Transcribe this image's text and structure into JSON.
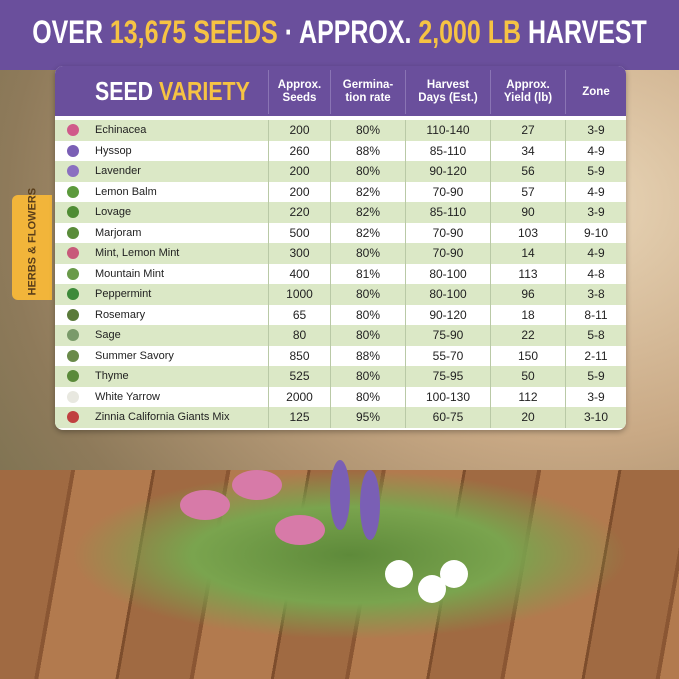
{
  "header": {
    "segments": [
      {
        "text": "OVER ",
        "highlight": false
      },
      {
        "text": "13,675 SEEDS",
        "highlight": true
      },
      {
        "text": " · APPROX. ",
        "highlight": false
      },
      {
        "text": "2,000 LB",
        "highlight": true
      },
      {
        "text": " HARVEST",
        "highlight": false
      }
    ]
  },
  "side_label": "HERBS & FLOWERS",
  "table": {
    "title": [
      {
        "text": "SEED ",
        "highlight": false
      },
      {
        "text": "VARIETY",
        "highlight": true
      }
    ],
    "columns": [
      [
        "Approx.",
        "Seeds"
      ],
      [
        "Germina-",
        "tion rate"
      ],
      [
        "Harvest",
        "Days (Est.)"
      ],
      [
        "Approx.",
        "Yield (lb)"
      ],
      [
        "Zone"
      ]
    ],
    "rows": [
      [
        "Echinacea",
        "200",
        "80%",
        "110-140",
        "27",
        "3-9"
      ],
      [
        "Hyssop",
        "260",
        "88%",
        "85-110",
        "34",
        "4-9"
      ],
      [
        "Lavender",
        "200",
        "80%",
        "90-120",
        "56",
        "5-9"
      ],
      [
        "Lemon Balm",
        "200",
        "82%",
        "70-90",
        "57",
        "4-9"
      ],
      [
        "Lovage",
        "220",
        "82%",
        "85-110",
        "90",
        "3-9"
      ],
      [
        "Marjoram",
        "500",
        "82%",
        "70-90",
        "103",
        "9-10"
      ],
      [
        "Mint, Lemon Mint",
        "300",
        "80%",
        "70-90",
        "14",
        "4-9"
      ],
      [
        "Mountain Mint",
        "400",
        "81%",
        "80-100",
        "113",
        "4-8"
      ],
      [
        "Peppermint",
        "1000",
        "80%",
        "80-100",
        "96",
        "3-8"
      ],
      [
        "Rosemary",
        "65",
        "80%",
        "90-120",
        "18",
        "8-11"
      ],
      [
        "Sage",
        "80",
        "80%",
        "75-90",
        "22",
        "5-8"
      ],
      [
        "Summer Savory",
        "850",
        "88%",
        "55-70",
        "150",
        "2-11"
      ],
      [
        "Thyme",
        "525",
        "80%",
        "75-95",
        "50",
        "5-9"
      ],
      [
        "White Yarrow",
        "2000",
        "80%",
        "100-130",
        "112",
        "3-9"
      ],
      [
        "Zinnia California Giants Mix",
        "125",
        "95%",
        "60-75",
        "20",
        "3-10"
      ]
    ]
  }
}
